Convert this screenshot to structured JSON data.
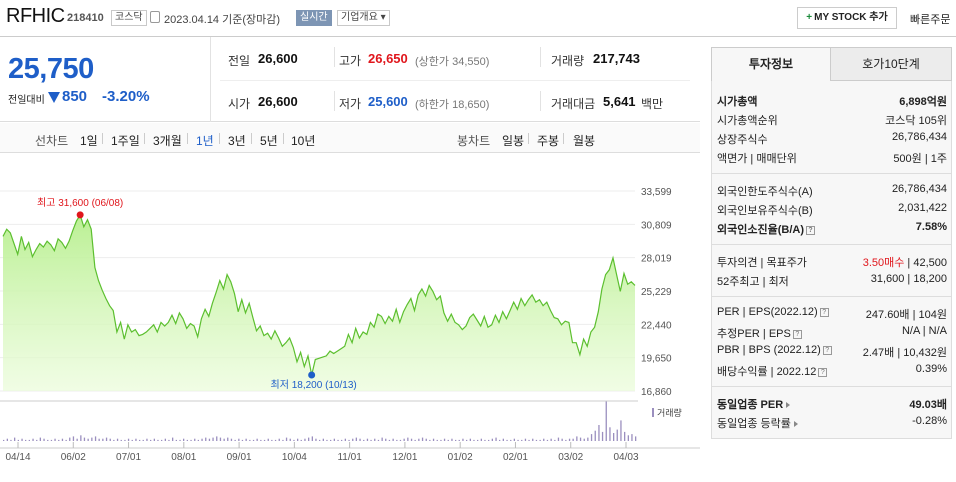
{
  "header": {
    "name": "RFHIC",
    "code": "218410",
    "market": "코스닥",
    "date": "2023.04.14 기준(장마감)",
    "live": "실시간",
    "overview": "기업개요 ▾",
    "mystock": "MY STOCK 추가",
    "mystock_plus": "+",
    "quick_order": "빠른주문"
  },
  "price": {
    "current": "25,750",
    "compare_label": "전일대비",
    "change": "850",
    "change_pct": "-3.20%"
  },
  "quotes": {
    "prev_label": "전일",
    "prev": "26,600",
    "open_label": "시가",
    "open": "26,600",
    "high_label": "고가",
    "high": "26,650",
    "upper_limit": "(상한가 34,550)",
    "low_label": "저가",
    "low": "25,600",
    "lower_limit": "(하한가 18,650)",
    "volume_label": "거래량",
    "volume": "217,743",
    "amount_label": "거래대금",
    "amount": "5,641",
    "amount_unit": "백만"
  },
  "periods": {
    "line_label": "선차트",
    "line": [
      "1일",
      "1주일",
      "3개월",
      "1년",
      "3년",
      "5년",
      "10년"
    ],
    "selected": "1년",
    "candle_label": "봉차트",
    "candle": [
      "일봉",
      "주봉",
      "월봉"
    ]
  },
  "chart_data": {
    "type": "area",
    "yticks": [
      "33,599",
      "30,809",
      "28,019",
      "25,229",
      "22,440",
      "19,650",
      "16,860"
    ],
    "ylim": [
      16860,
      33599
    ],
    "xticks": [
      "04/14",
      "06/02",
      "07/01",
      "08/01",
      "09/01",
      "10/04",
      "11/01",
      "12/01",
      "01/02",
      "02/01",
      "03/02",
      "04/03"
    ],
    "high_label": "최고 31,600 (06/08)",
    "low_label": "최저 18,200 (10/13)",
    "volume_label": "거래량",
    "series": [
      {
        "values": [
          29800,
          30400,
          30100,
          29200,
          28300,
          29800,
          28700,
          29300,
          28100,
          28700,
          29200,
          28900,
          29400,
          29100,
          28600,
          29600,
          29300,
          28800,
          29400,
          30300,
          31100,
          31600,
          30600,
          31200,
          30400,
          27200,
          26100,
          25300,
          24600,
          24000,
          23600,
          21800,
          22600,
          21200,
          22400,
          21800,
          22000,
          21500,
          21600,
          21800,
          22100,
          22400,
          21800,
          22600,
          22300,
          22600,
          23200,
          22500,
          23400,
          22900,
          22100,
          22500,
          22300,
          21400,
          22900,
          23700,
          23100,
          24200,
          25100,
          26100,
          25400,
          26600,
          26000,
          25000,
          23500,
          24500,
          23400,
          24200,
          23000,
          21900,
          22300,
          21500,
          21700,
          21200,
          21900,
          21300,
          20600,
          20900,
          21300,
          20500,
          19300,
          20100,
          18900,
          19800,
          18200,
          19500,
          19600,
          19700,
          19800,
          20200,
          20000,
          20200,
          20400,
          20600,
          21600,
          20900,
          22100,
          21300,
          21800,
          21600,
          22600,
          22200,
          23300,
          23100,
          22500,
          23100,
          22700,
          23700,
          22600,
          23500,
          24100,
          24600,
          23600,
          24900,
          25400,
          24800,
          25700,
          25200,
          24500,
          24800,
          23400,
          22700,
          23300,
          22600,
          22400,
          22000,
          22300,
          23000,
          23300,
          22800,
          22300,
          23100,
          22200,
          22400,
          23200,
          22600,
          23500,
          22900,
          23600,
          24300,
          23700,
          24600,
          24000,
          24500,
          24900,
          24300,
          24500,
          24000,
          24300,
          23600,
          23000,
          22900,
          22400,
          22700,
          22600,
          20900,
          20900,
          19900,
          21200,
          20600,
          21800,
          22200,
          23500,
          25400,
          26600,
          27000,
          28000,
          26600,
          25200,
          26700,
          25800,
          26000,
          25700
        ]
      }
    ],
    "volume": [
      1,
      2,
      1,
      3,
      1,
      2,
      1,
      1,
      2,
      1,
      3,
      2,
      1,
      1,
      2,
      1,
      2,
      1,
      3,
      4,
      2,
      5,
      3,
      2,
      3,
      4,
      2,
      2,
      3,
      2,
      1,
      2,
      1,
      1,
      2,
      1,
      2,
      1,
      1,
      2,
      1,
      2,
      1,
      1,
      2,
      1,
      3,
      1,
      1,
      2,
      1,
      1,
      2,
      1,
      2,
      3,
      2,
      3,
      4,
      3,
      2,
      3,
      2,
      1,
      2,
      1,
      2,
      1,
      1,
      2,
      1,
      1,
      2,
      1,
      1,
      2,
      1,
      3,
      2,
      1,
      2,
      1,
      2,
      3,
      4,
      2,
      1,
      2,
      1,
      1,
      2,
      1,
      1,
      2,
      1,
      2,
      3,
      2,
      1,
      2,
      1,
      2,
      1,
      3,
      2,
      1,
      2,
      1,
      1,
      2,
      3,
      2,
      1,
      2,
      3,
      2,
      1,
      2,
      1,
      1,
      2,
      1,
      2,
      1,
      1,
      2,
      1,
      2,
      1,
      1,
      2,
      1,
      1,
      2,
      3,
      1,
      2,
      1,
      1,
      2,
      1,
      1,
      2,
      1,
      2,
      1,
      1,
      2,
      1,
      2,
      1,
      3,
      2,
      1,
      2,
      2,
      4,
      3,
      2,
      3,
      6,
      9,
      14,
      8,
      35,
      12,
      7,
      10,
      18,
      8,
      5,
      6,
      4
    ]
  },
  "panel": {
    "tab_active": "투자정보",
    "tab_other": "호가10단계",
    "market_cap_label": "시가총액",
    "market_cap": "6,898억원",
    "cap_rank_label": "시가총액순위",
    "cap_rank": "코스닥 105위",
    "shares_label": "상장주식수",
    "shares": "26,786,434",
    "par_label": "액면가 | 매매단위",
    "par": "500원 | 1주",
    "foreign_limit_label": "외국인한도주식수(A)",
    "foreign_limit": "26,786,434",
    "foreign_hold_label": "외국인보유주식수(B)",
    "foreign_hold": "2,031,422",
    "foreign_ratio_label": "외국인소진율(B/A)",
    "foreign_ratio": "7.58%",
    "opinion_label": "투자의견 | 목표주가",
    "opinion": "3.50매수",
    "target": "42,500",
    "w52_label": "52주최고 | 최저",
    "w52": "31,600 | 18,200",
    "per_label": "PER | EPS(2022.12)",
    "per": "247.60배 | 104원",
    "est_label": "추정PER | EPS",
    "est": "N/A | N/A",
    "pbr_label": "PBR | BPS (2022.12)",
    "pbr": "2.47배 | 10,432원",
    "div_label": "배당수익률 | 2022.12",
    "div": "0.39%",
    "sector_per_label": "동일업종 PER",
    "sector_per": "49.03배",
    "sector_rate_label": "동일업종 등락률",
    "sector_rate": "-0.28%"
  }
}
